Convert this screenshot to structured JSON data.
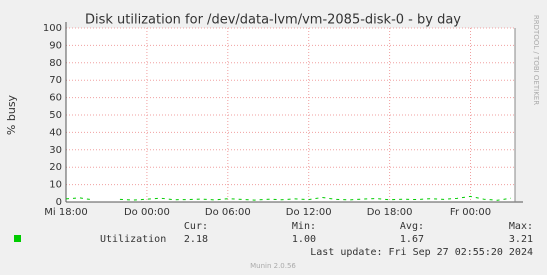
{
  "chart_data": {
    "type": "line",
    "title": "Disk utilization for /dev/data-lvm/vm-2085-disk-0 - by day",
    "y_label": "% busy",
    "side_text": "RRDTOOL / TOBI OETIKER",
    "x": [
      0,
      1,
      2,
      3,
      4,
      5,
      6,
      7,
      8,
      9,
      10,
      11,
      12,
      13,
      14,
      15,
      16,
      17,
      18,
      19,
      20,
      21,
      22,
      23,
      24,
      25,
      26,
      27,
      28,
      29,
      30,
      31,
      32,
      33
    ],
    "series": [
      {
        "name": "Utilization",
        "color": "#00cc00",
        "values": [
          1.8,
          2.4,
          1.2,
          null,
          1.5,
          1.1,
          1.6,
          2.2,
          1.3,
          1.4,
          1.7,
          1.2,
          1.9,
          1.5,
          1.1,
          1.6,
          1.3,
          1.8,
          1.4,
          2.6,
          1.5,
          1.2,
          1.7,
          2.0,
          1.3,
          1.6,
          1.4,
          1.9,
          1.5,
          2.1,
          3.21,
          1.6,
          1.0,
          2.18
        ]
      }
    ],
    "xlim": [
      0,
      33.3
    ],
    "xticks": [
      {
        "value": 0,
        "label": "Mi 18:00"
      },
      {
        "value": 6,
        "label": "Do 00:00"
      },
      {
        "value": 12,
        "label": "Do 06:00"
      },
      {
        "value": 18,
        "label": "Do 12:00"
      },
      {
        "value": 24,
        "label": "Do 18:00"
      },
      {
        "value": 30,
        "label": "Fr 00:00"
      }
    ],
    "ylim": [
      0,
      100
    ],
    "yticks": [
      0,
      10,
      20,
      30,
      40,
      50,
      60,
      70,
      80,
      90,
      100
    ],
    "grid": true,
    "summary": {
      "headers": [
        "Cur:",
        "Min:",
        "Avg:",
        "Max:"
      ],
      "row": [
        "2.18",
        "1.00",
        "1.67",
        "3.21"
      ]
    },
    "last_update": "Last update: Fri Sep 27 02:55:20 2024",
    "footer": "Munin 2.0.56"
  }
}
